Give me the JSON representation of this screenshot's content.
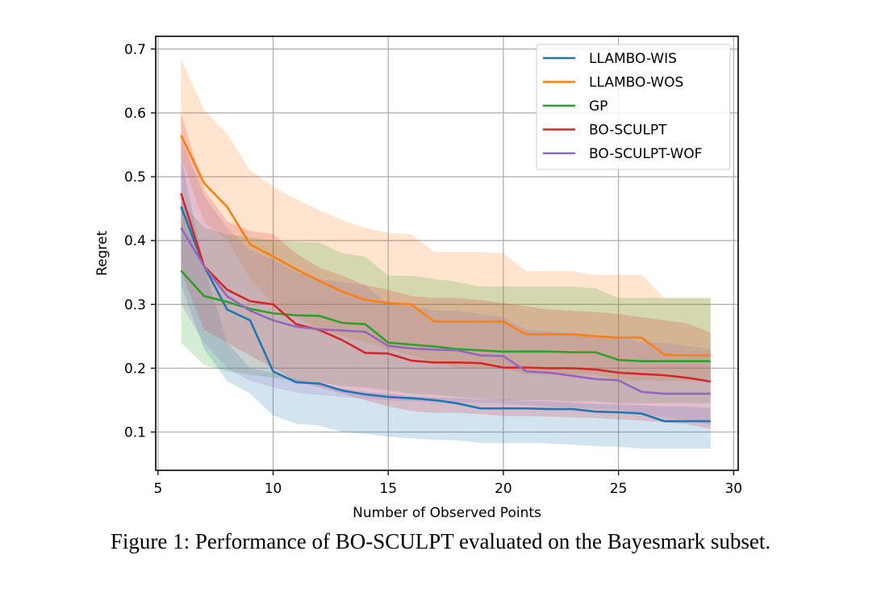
{
  "caption": "Figure 1: Performance of BO-SCULPT evaluated on the Bayesmark subset.",
  "chart_data": {
    "type": "line",
    "title": "",
    "xlabel": "Number of Observed Points",
    "ylabel": "Regret",
    "xlim": [
      4.9,
      30.2
    ],
    "ylim": [
      0.04,
      0.72
    ],
    "xticks": [
      5,
      10,
      15,
      20,
      25,
      30
    ],
    "yticks": [
      0.1,
      0.2,
      0.3,
      0.4,
      0.5,
      0.6,
      0.7
    ],
    "xtick_labels": [
      "5",
      "10",
      "15",
      "20",
      "25",
      "30"
    ],
    "ytick_labels": [
      "0.1",
      "0.2",
      "0.3",
      "0.4",
      "0.5",
      "0.6",
      "0.7"
    ],
    "grid": true,
    "legend_position": "top-right",
    "x": [
      6,
      7,
      8,
      9,
      10,
      11,
      12,
      13,
      14,
      15,
      16,
      17,
      18,
      19,
      20,
      21,
      22,
      23,
      24,
      25,
      26,
      27,
      28,
      29
    ],
    "series": [
      {
        "name": "LLAMBO-WIS",
        "color": "#1f77b4",
        "values": [
          0.453,
          0.36,
          0.292,
          0.275,
          0.195,
          0.178,
          0.176,
          0.165,
          0.159,
          0.155,
          0.153,
          0.15,
          0.145,
          0.137,
          0.137,
          0.137,
          0.136,
          0.136,
          0.132,
          0.131,
          0.129,
          0.117,
          0.117,
          0.117
        ],
        "upper": [
          0.53,
          0.36,
          0.24,
          0.2,
          0.193,
          0.183,
          0.175,
          0.168,
          0.163,
          0.16,
          0.156,
          0.154,
          0.153,
          0.151,
          0.151,
          0.149,
          0.148,
          0.146,
          0.144,
          0.143,
          0.142,
          0.14,
          0.14,
          0.138
        ],
        "lower": [
          0.33,
          0.23,
          0.18,
          0.16,
          0.126,
          0.113,
          0.11,
          0.1,
          0.097,
          0.093,
          0.09,
          0.088,
          0.087,
          0.083,
          0.083,
          0.083,
          0.082,
          0.08,
          0.078,
          0.077,
          0.074,
          0.074,
          0.074,
          0.074
        ]
      },
      {
        "name": "LLAMBO-WOS",
        "color": "#ff7f0e",
        "values": [
          0.565,
          0.49,
          0.453,
          0.394,
          0.375,
          0.355,
          0.337,
          0.32,
          0.307,
          0.302,
          0.3,
          0.273,
          0.273,
          0.273,
          0.273,
          0.253,
          0.253,
          0.253,
          0.25,
          0.248,
          0.248,
          0.221,
          0.22,
          0.22
        ],
        "upper": [
          0.685,
          0.605,
          0.567,
          0.51,
          0.485,
          0.465,
          0.448,
          0.432,
          0.42,
          0.412,
          0.41,
          0.382,
          0.382,
          0.382,
          0.38,
          0.352,
          0.352,
          0.352,
          0.346,
          0.346,
          0.346,
          0.31,
          0.31,
          0.31
        ],
        "lower": [
          0.53,
          0.43,
          0.4,
          0.34,
          0.3,
          0.28,
          0.26,
          0.25,
          0.24,
          0.23,
          0.22,
          0.21,
          0.2,
          0.2,
          0.2,
          0.19,
          0.19,
          0.19,
          0.19,
          0.18,
          0.18,
          0.18,
          0.18,
          0.18
        ]
      },
      {
        "name": "GP",
        "color": "#2ca02c",
        "values": [
          0.353,
          0.313,
          0.304,
          0.293,
          0.286,
          0.283,
          0.282,
          0.271,
          0.269,
          0.24,
          0.237,
          0.234,
          0.23,
          0.228,
          0.226,
          0.226,
          0.226,
          0.225,
          0.225,
          0.213,
          0.211,
          0.211,
          0.211,
          0.211
        ],
        "upper": [
          0.46,
          0.42,
          0.41,
          0.405,
          0.4,
          0.398,
          0.397,
          0.38,
          0.375,
          0.345,
          0.345,
          0.34,
          0.335,
          0.328,
          0.328,
          0.328,
          0.328,
          0.328,
          0.325,
          0.31,
          0.31,
          0.31,
          0.31,
          0.31
        ],
        "lower": [
          0.24,
          0.205,
          0.195,
          0.19,
          0.185,
          0.18,
          0.178,
          0.172,
          0.17,
          0.165,
          0.16,
          0.158,
          0.155,
          0.152,
          0.15,
          0.15,
          0.15,
          0.148,
          0.148,
          0.145,
          0.145,
          0.145,
          0.145,
          0.145
        ]
      },
      {
        "name": "BO-SCULPT",
        "color": "#d62728",
        "values": [
          0.474,
          0.36,
          0.323,
          0.305,
          0.3,
          0.269,
          0.26,
          0.244,
          0.224,
          0.223,
          0.212,
          0.209,
          0.209,
          0.208,
          0.201,
          0.201,
          0.2,
          0.2,
          0.198,
          0.193,
          0.191,
          0.189,
          0.185,
          0.179
        ],
        "upper": [
          0.6,
          0.48,
          0.43,
          0.415,
          0.41,
          0.38,
          0.358,
          0.345,
          0.33,
          0.323,
          0.313,
          0.31,
          0.31,
          0.307,
          0.302,
          0.297,
          0.292,
          0.29,
          0.288,
          0.285,
          0.28,
          0.275,
          0.27,
          0.256
        ],
        "lower": [
          0.35,
          0.26,
          0.24,
          0.22,
          0.2,
          0.18,
          0.17,
          0.16,
          0.15,
          0.14,
          0.133,
          0.13,
          0.13,
          0.128,
          0.125,
          0.125,
          0.124,
          0.123,
          0.122,
          0.12,
          0.118,
          0.115,
          0.112,
          0.105
        ]
      },
      {
        "name": "BO-SCULPT-WOF",
        "color": "#9467bd",
        "values": [
          0.42,
          0.36,
          0.313,
          0.29,
          0.275,
          0.265,
          0.261,
          0.259,
          0.257,
          0.235,
          0.231,
          0.229,
          0.228,
          0.22,
          0.219,
          0.195,
          0.193,
          0.188,
          0.183,
          0.181,
          0.163,
          0.16,
          0.16,
          0.16
        ],
        "upper": [
          0.56,
          0.47,
          0.42,
          0.385,
          0.37,
          0.35,
          0.34,
          0.335,
          0.33,
          0.3,
          0.298,
          0.29,
          0.29,
          0.285,
          0.28,
          0.26,
          0.258,
          0.255,
          0.252,
          0.25,
          0.24,
          0.24,
          0.235,
          0.23
        ],
        "lower": [
          0.3,
          0.24,
          0.2,
          0.18,
          0.17,
          0.162,
          0.158,
          0.155,
          0.152,
          0.15,
          0.148,
          0.147,
          0.147,
          0.146,
          0.145,
          0.142,
          0.14,
          0.138,
          0.136,
          0.135,
          0.127,
          0.123,
          0.118,
          0.112
        ]
      }
    ]
  }
}
